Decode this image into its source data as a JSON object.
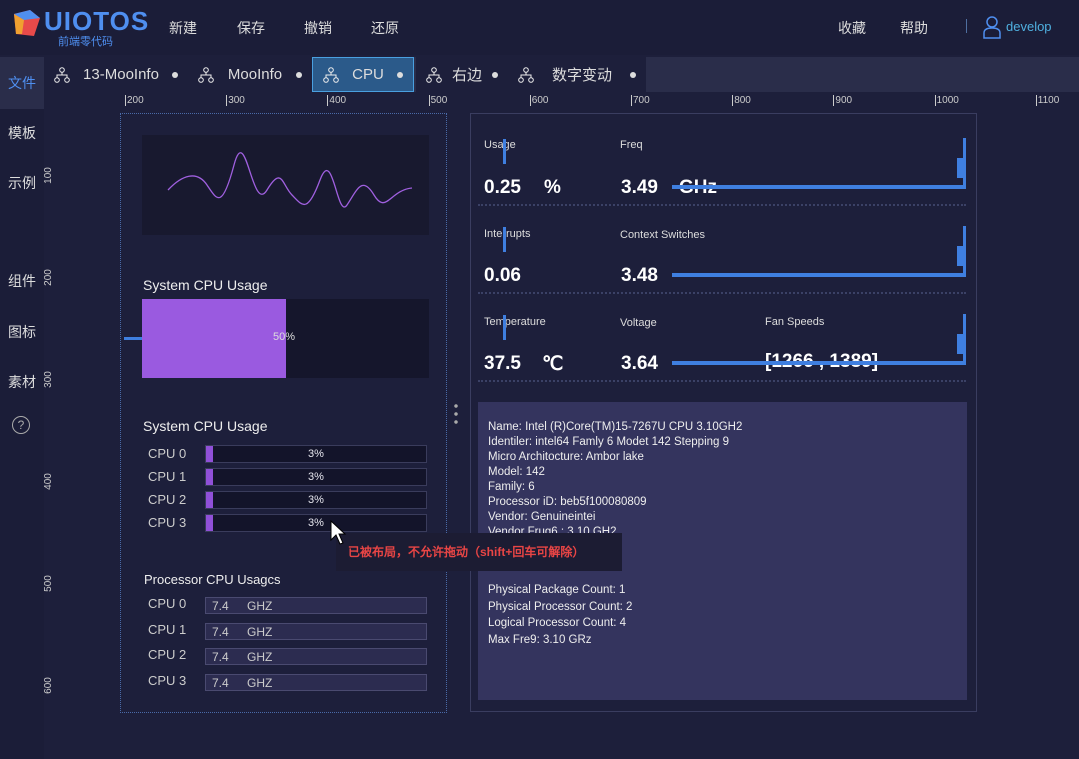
{
  "app": {
    "logo": "UIOTOS",
    "logo_sub": "前端零代码",
    "menu": [
      "新建",
      "保存",
      "撤销",
      "还原"
    ],
    "right_menu": [
      "收藏",
      "帮助"
    ],
    "user": "develop",
    "accent": "#4f8ff0"
  },
  "tabs": [
    {
      "label": "13-MooInfo"
    },
    {
      "label": "MooInfo"
    },
    {
      "label": "CPU",
      "active": true
    },
    {
      "label": "右边"
    },
    {
      "label": "数字变动"
    }
  ],
  "sidebar": [
    "文件",
    "模板",
    "示例",
    "组件",
    "图标",
    "素材"
  ],
  "ruler_h": [
    "200",
    "300",
    "400",
    "500",
    "600",
    "700",
    "800",
    "900",
    "1000",
    "1100"
  ],
  "ruler_v": [
    "100",
    "200",
    "300",
    "400",
    "500",
    "600"
  ],
  "left": {
    "usage_title": "System CPU Usage",
    "usage_value": "50%",
    "usage_percent": 50,
    "cores_title": "System CPU Usage",
    "cores": [
      {
        "name": "CPU 0",
        "value": "3%",
        "pct": 3
      },
      {
        "name": "CPU 1",
        "value": "3%",
        "pct": 3
      },
      {
        "name": "CPU 2",
        "value": "3%",
        "pct": 3
      },
      {
        "name": "CPU 3",
        "value": "3%",
        "pct": 3
      }
    ],
    "freq_title": "Processor CPU Usagcs",
    "freqs": [
      {
        "name": "CPU 0",
        "value": "7.4",
        "unit": "GHZ"
      },
      {
        "name": "CPU 1",
        "value": "7.4",
        "unit": "GHZ"
      },
      {
        "name": "CPU 2",
        "value": "7.4",
        "unit": "GHZ"
      },
      {
        "name": "CPU 3",
        "value": "7.4",
        "unit": "GHZ"
      }
    ]
  },
  "stats": {
    "usage": {
      "label": "Usage",
      "value": "0.25",
      "unit": "%"
    },
    "freq": {
      "label": "Freq",
      "value": "3.49",
      "unit": "GHz"
    },
    "interrupts": {
      "label": "Interrupts",
      "value": "0.06"
    },
    "ctx": {
      "label": "Context Switches",
      "value": "3.48"
    },
    "temp": {
      "label": "Temperature",
      "value": "37.5",
      "unit": "℃"
    },
    "volt": {
      "label": "Voltage",
      "value": "3.64"
    },
    "fan": {
      "label": "Fan Speeds",
      "value": "[1266 , 1389]"
    }
  },
  "info": {
    "lines": [
      "Name: Intel  (R)Core(TM)15-7267U CPU 3.10GH2",
      "Identiler: intel64 Famly 6 Modet 142 Stepping 9",
      "Micro Architocture:  Ambor lake",
      "Model: 142",
      "Family: 6",
      "Processor iD:  beb5f100080809",
      "Vendor:  Genuineintei",
      "Vendor Frug6 : 3.10 GH2"
    ],
    "lines2": [
      "Physical Package Count: 1",
      "Physical Processor Count: 2",
      "Logical Processor Count: 4",
      "Max Fre9: 3.10 GRz"
    ]
  },
  "tooltip": "已被布局，不允许拖动（shift+回车可解除）"
}
